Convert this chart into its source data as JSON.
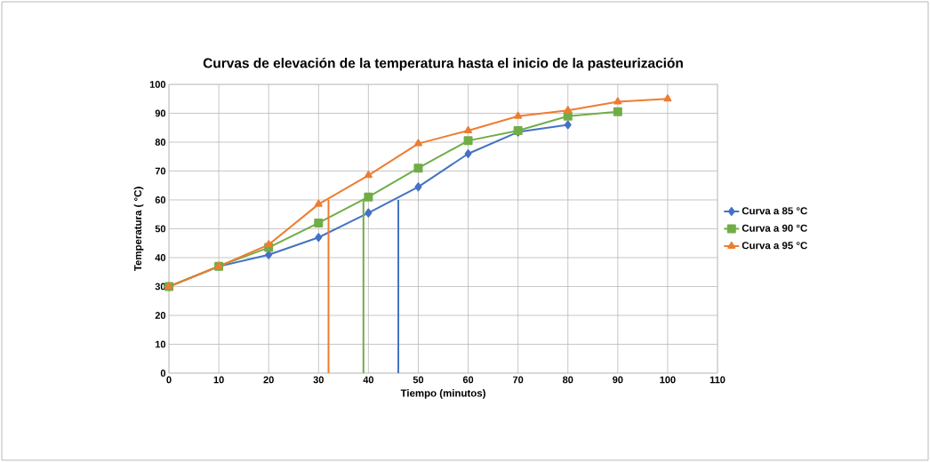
{
  "chart_data": {
    "type": "line",
    "title": "Curvas de elevación de la temperatura hasta el inicio de la pasteurización",
    "xlabel": "Tiempo (minutos)",
    "ylabel": "Temperatura ( °C)",
    "xlim": [
      0,
      110
    ],
    "ylim": [
      0,
      100
    ],
    "xticks": [
      0,
      10,
      20,
      30,
      40,
      50,
      60,
      70,
      80,
      90,
      100,
      110
    ],
    "yticks": [
      0,
      10,
      20,
      30,
      40,
      50,
      60,
      70,
      80,
      90,
      100
    ],
    "grid": true,
    "legend": "right",
    "series": [
      {
        "name": "Curva a 85 °C",
        "color": "#4472c4",
        "marker": "diamond",
        "x": [
          0,
          10,
          20,
          30,
          40,
          50,
          60,
          70,
          80
        ],
        "values": [
          30,
          37,
          41,
          47,
          55.5,
          64.5,
          76,
          83.5,
          86
        ]
      },
      {
        "name": "Curva a 90 °C",
        "color": "#70ad47",
        "marker": "square",
        "x": [
          0,
          10,
          20,
          30,
          40,
          50,
          60,
          70,
          80,
          90
        ],
        "values": [
          30,
          37,
          43.5,
          52,
          61,
          71,
          80.5,
          84,
          89,
          90.5
        ]
      },
      {
        "name": "Curva a 95 °C",
        "color": "#ed7d31",
        "marker": "triangle",
        "x": [
          0,
          10,
          20,
          30,
          40,
          50,
          60,
          70,
          80,
          90,
          100
        ],
        "values": [
          30,
          37,
          44.5,
          58.5,
          68.5,
          79.5,
          84,
          89,
          91,
          94,
          95
        ]
      },
      {
        "color": "#4472c4",
        "marker": "none",
        "x": [
          46,
          46
        ],
        "values": [
          0,
          60
        ]
      },
      {
        "color": "#70ad47",
        "marker": "none",
        "x": [
          39,
          39
        ],
        "values": [
          0,
          60
        ]
      },
      {
        "color": "#ed7d31",
        "marker": "none",
        "x": [
          32,
          32
        ],
        "values": [
          0,
          60
        ]
      }
    ]
  }
}
